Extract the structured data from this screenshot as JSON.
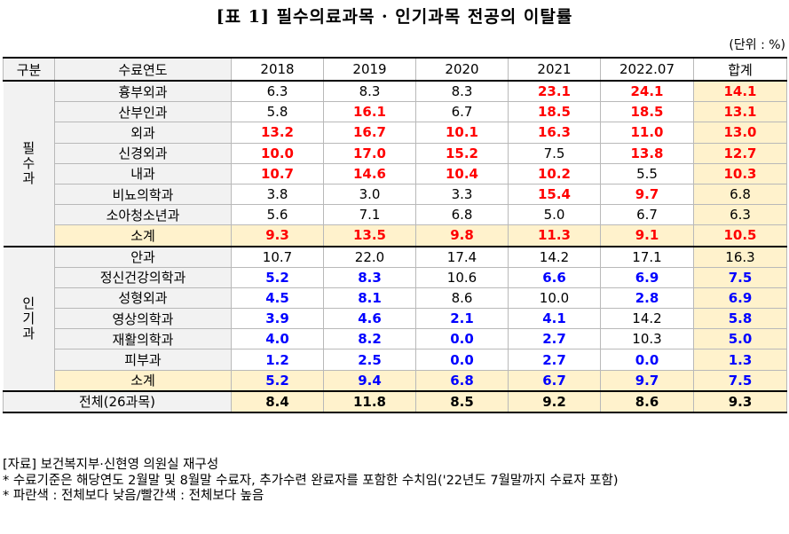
{
  "title": "[표 1] 필수의료과목 · 인기과목 전공의 이탈률",
  "unit": "(단위 : %)",
  "header": [
    "구분",
    "수료연도",
    "2018",
    "2019",
    "2020",
    "2021",
    "2022.07",
    "합계"
  ],
  "groups": [
    {
      "category": "필수과",
      "rows": [
        {
          "name": "흉부외과",
          "values": [
            "6.3",
            "8.3",
            "8.3",
            "23.1",
            "24.1",
            "14.1"
          ],
          "styles": [
            "n",
            "n",
            "n",
            "h",
            "h",
            "h"
          ]
        },
        {
          "name": "산부인과",
          "values": [
            "5.8",
            "16.1",
            "6.7",
            "18.5",
            "18.5",
            "13.1"
          ],
          "styles": [
            "n",
            "h",
            "n",
            "h",
            "h",
            "h"
          ]
        },
        {
          "name": "외과",
          "values": [
            "13.2",
            "16.7",
            "10.1",
            "16.3",
            "11.0",
            "13.0"
          ],
          "styles": [
            "h",
            "h",
            "h",
            "h",
            "h",
            "h"
          ]
        },
        {
          "name": "신경외과",
          "values": [
            "10.0",
            "17.0",
            "15.2",
            "7.5",
            "13.8",
            "12.7"
          ],
          "styles": [
            "h",
            "h",
            "h",
            "n",
            "h",
            "h"
          ]
        },
        {
          "name": "내과",
          "values": [
            "10.7",
            "14.6",
            "10.4",
            "10.2",
            "5.5",
            "10.3"
          ],
          "styles": [
            "h",
            "h",
            "h",
            "h",
            "n",
            "h"
          ]
        },
        {
          "name": "비뇨의학과",
          "values": [
            "3.8",
            "3.0",
            "3.3",
            "15.4",
            "9.7",
            "6.8"
          ],
          "styles": [
            "n",
            "n",
            "n",
            "h",
            "h",
            "n"
          ]
        },
        {
          "name": "소아청소년과",
          "values": [
            "5.6",
            "7.1",
            "6.8",
            "5.0",
            "6.7",
            "6.3"
          ],
          "styles": [
            "n",
            "n",
            "n",
            "n",
            "n",
            "n"
          ]
        },
        {
          "name": "소계",
          "subtotal": true,
          "values": [
            "9.3",
            "13.5",
            "9.8",
            "11.3",
            "9.1",
            "10.5"
          ],
          "styles": [
            "h",
            "h",
            "h",
            "h",
            "h",
            "h"
          ]
        }
      ]
    },
    {
      "category": "인기과",
      "rows": [
        {
          "name": "안과",
          "values": [
            "10.7",
            "22.0",
            "17.4",
            "14.2",
            "17.1",
            "16.3"
          ],
          "styles": [
            "n",
            "n",
            "n",
            "n",
            "n",
            "n"
          ]
        },
        {
          "name": "정신건강의학과",
          "values": [
            "5.2",
            "8.3",
            "10.6",
            "6.6",
            "6.9",
            "7.5"
          ],
          "styles": [
            "l",
            "l",
            "n",
            "l",
            "l",
            "l"
          ]
        },
        {
          "name": "성형외과",
          "values": [
            "4.5",
            "8.1",
            "8.6",
            "10.0",
            "2.8",
            "6.9"
          ],
          "styles": [
            "l",
            "l",
            "n",
            "n",
            "l",
            "l"
          ]
        },
        {
          "name": "영상의학과",
          "values": [
            "3.9",
            "4.6",
            "2.1",
            "4.1",
            "14.2",
            "5.8"
          ],
          "styles": [
            "l",
            "l",
            "l",
            "l",
            "n",
            "l"
          ]
        },
        {
          "name": "재활의학과",
          "values": [
            "4.0",
            "8.2",
            "0.0",
            "2.7",
            "10.3",
            "5.0"
          ],
          "styles": [
            "l",
            "l",
            "l",
            "l",
            "n",
            "l"
          ]
        },
        {
          "name": "피부과",
          "values": [
            "1.2",
            "2.5",
            "0.0",
            "2.7",
            "0.0",
            "1.3"
          ],
          "styles": [
            "l",
            "l",
            "l",
            "l",
            "l",
            "l"
          ]
        },
        {
          "name": "소계",
          "subtotal": true,
          "values": [
            "5.2",
            "9.4",
            "6.8",
            "6.7",
            "9.7",
            "7.5"
          ],
          "styles": [
            "l",
            "l",
            "l",
            "l",
            "l",
            "l"
          ]
        }
      ]
    }
  ],
  "total": {
    "name": "전체(26과목)",
    "values": [
      "8.4",
      "11.8",
      "8.5",
      "9.2",
      "8.6",
      "9.3"
    ]
  },
  "notes": [
    "[자료] 보건복지부·신현영 의원실 재구성",
    "* 수료기준은 해당연도 2월말 및 8월말 수료자, 추가수련 완료자를 포함한 수치임('22년도 7월말까지 수료자 포함)",
    "* 파란색 : 전체보다 낮음/빨간색 : 전체보다 높음"
  ],
  "colors": {
    "higher": "#ff0000",
    "lower": "#0000ff",
    "label_bg": "#f2f2f2",
    "subtotal_bg": "#fff2cc"
  }
}
